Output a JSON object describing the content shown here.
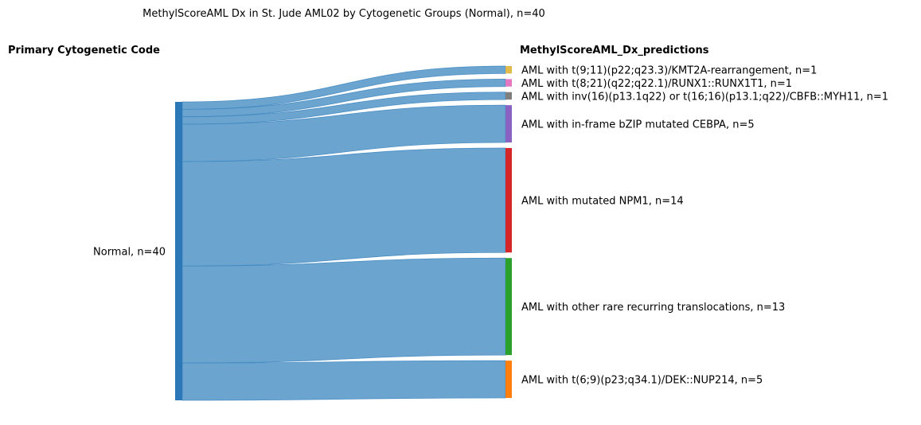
{
  "chart_data": {
    "type": "sankey",
    "title": "MethylScoreAML Dx in St. Jude AML02 by Cytogenetic Groups (Normal), n=40",
    "left_header": "Primary Cytogenetic Code",
    "right_header": "MethylScoreAML_Dx_predictions",
    "source": {
      "label": "Normal, n=40",
      "value": 40,
      "color": "#2b77b8"
    },
    "link_color": "#6ba5cf",
    "targets": [
      {
        "label": "AML with t(9;11)(p22;q23.3)/KMT2A-rearrangement, n=1",
        "value": 1,
        "color": "#e0bb4c"
      },
      {
        "label": "AML with t(8;21)(q22;q22.1)/RUNX1::RUNX1T1, n=1",
        "value": 1,
        "color": "#e477c1"
      },
      {
        "label": "AML with inv(16)(p13.1q22) or t(16;16)(p13.1;q22)/CBFB::MYH11, n=1",
        "value": 1,
        "color": "#7f7f7f"
      },
      {
        "label": "AML with in-frame bZIP mutated CEBPA, n=5",
        "value": 5,
        "color": "#8a62c2"
      },
      {
        "label": "AML with mutated NPM1, n=14",
        "value": 14,
        "color": "#d62728"
      },
      {
        "label": "AML with other rare recurring translocations, n=13",
        "value": 13,
        "color": "#2ca02c"
      },
      {
        "label": "AML with t(6;9)(p23;q34.1)/DEK::NUP214, n=5",
        "value": 5,
        "color": "#ff7f0e"
      }
    ]
  }
}
